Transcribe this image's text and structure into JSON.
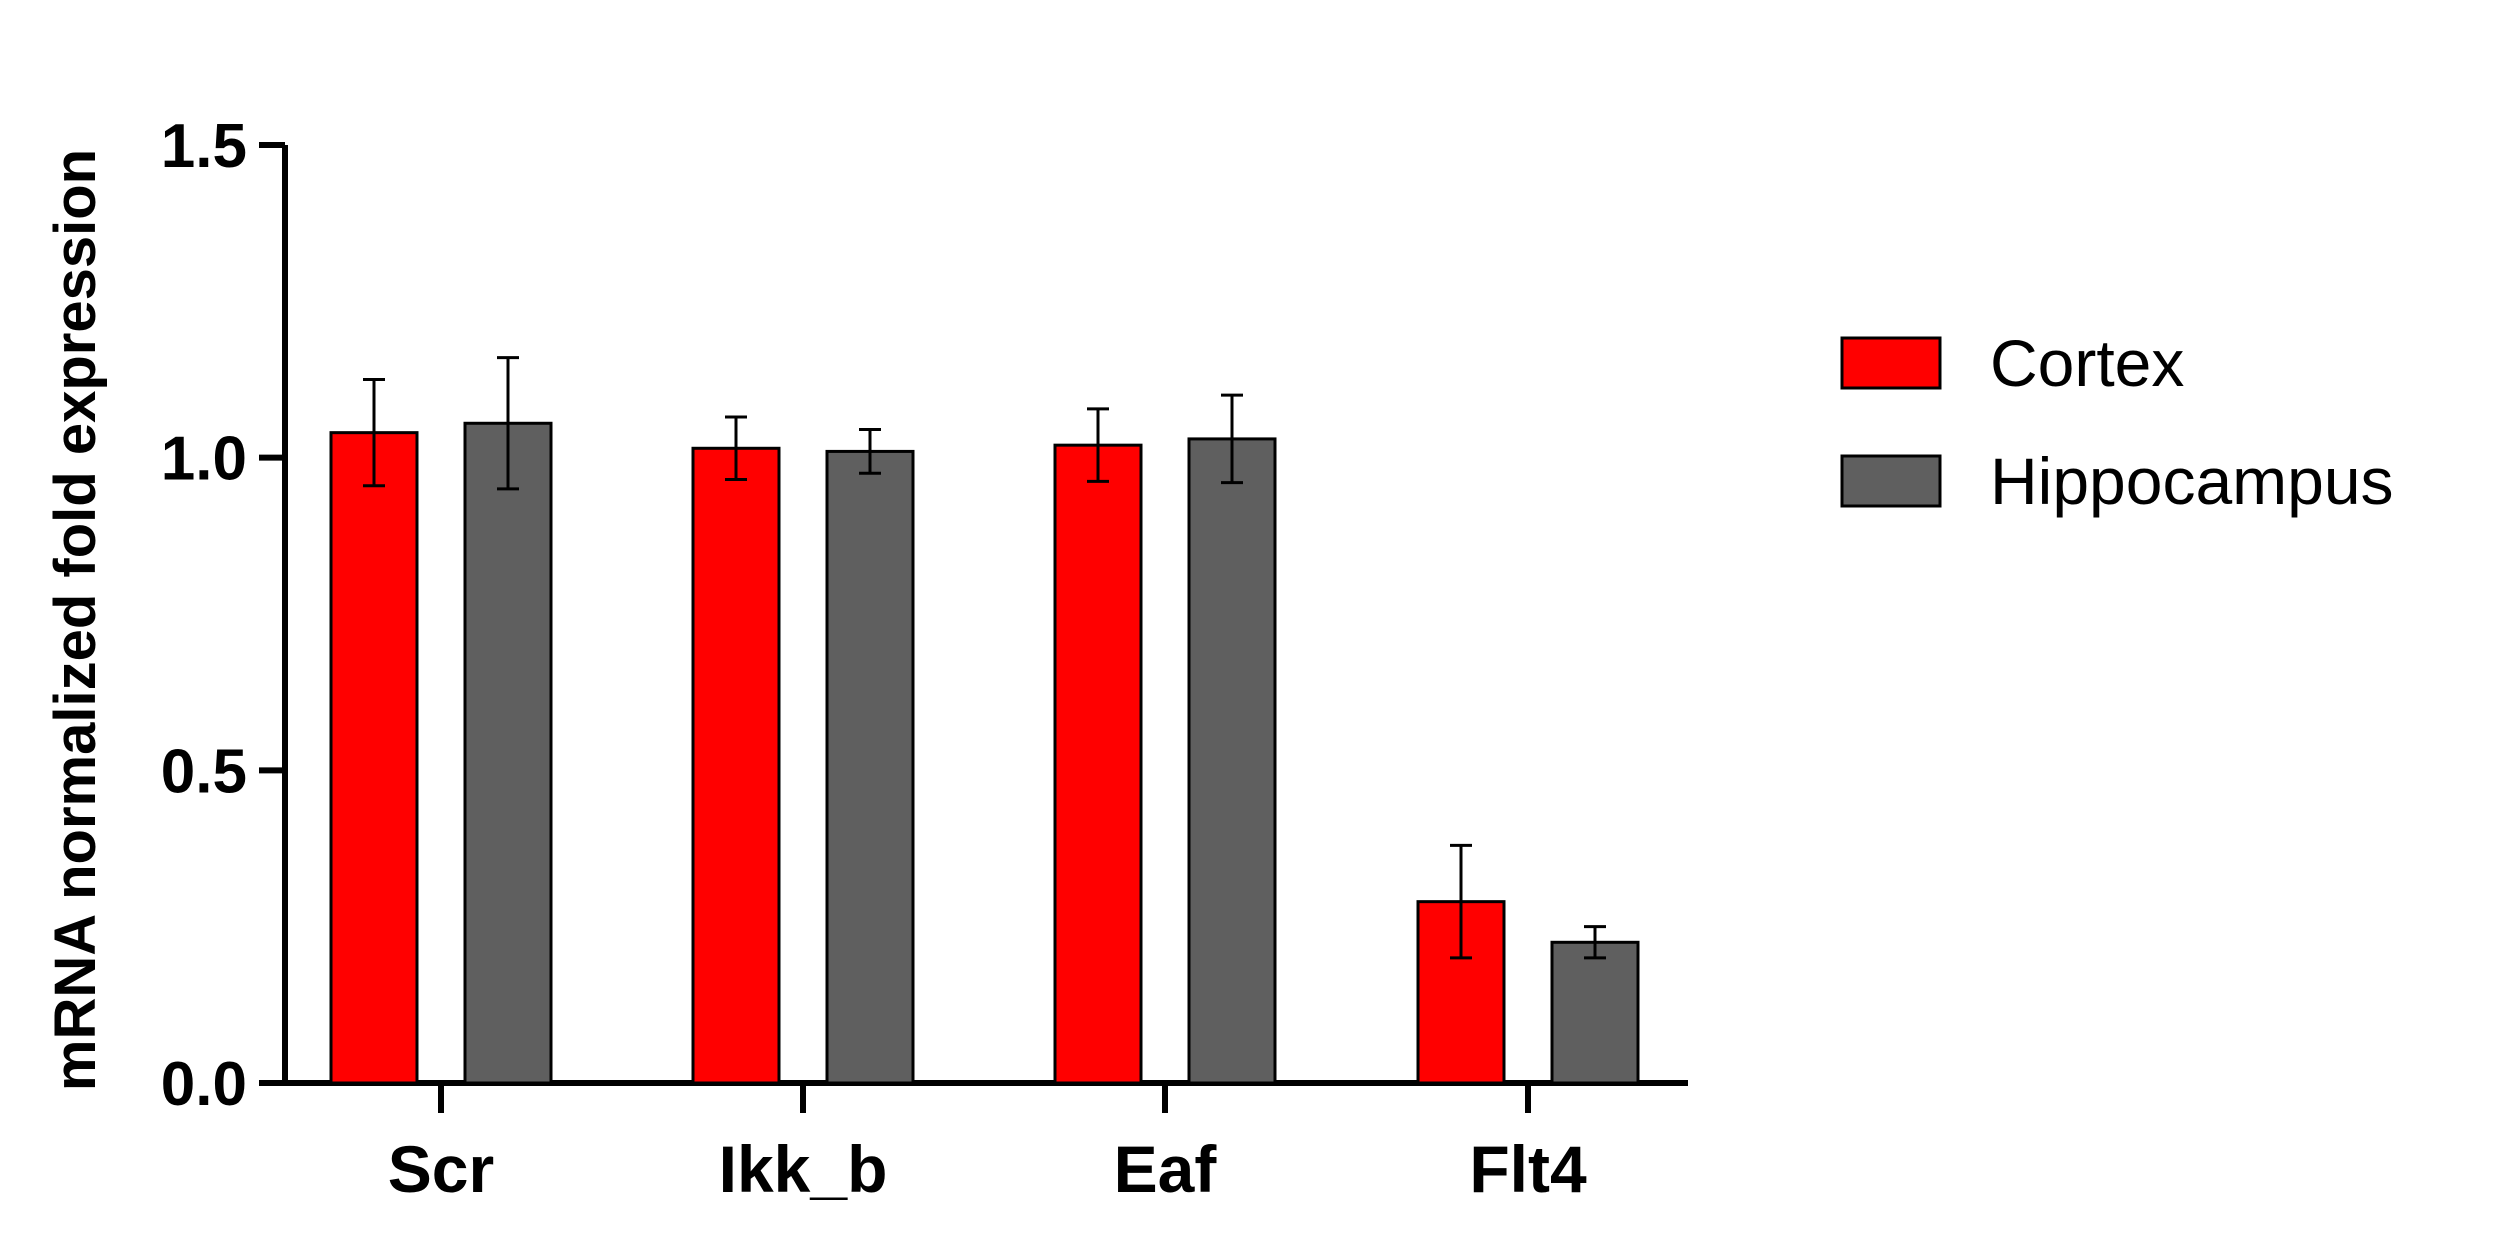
{
  "chart_data": {
    "type": "bar",
    "title": "",
    "xlabel": "",
    "ylabel": "mRNA normalized fold expression",
    "ylim": [
      0,
      1.5
    ],
    "yticks": [
      "0.0",
      "0.5",
      "1.0",
      "1.5"
    ],
    "categories": [
      "Scr",
      "Ikk_b",
      "Eaf",
      "Flt4"
    ],
    "series": [
      {
        "name": "Cortex",
        "color": "#ff0000",
        "values": [
          1.04,
          1.015,
          1.02,
          0.29
        ],
        "errors": [
          0.085,
          0.05,
          0.058,
          0.09
        ]
      },
      {
        "name": "Hippocampus",
        "color": "#5f5f5f",
        "values": [
          1.055,
          1.01,
          1.03,
          0.225
        ],
        "errors": [
          0.105,
          0.035,
          0.07,
          0.025
        ]
      }
    ],
    "legend_position": "right",
    "grid": false
  }
}
